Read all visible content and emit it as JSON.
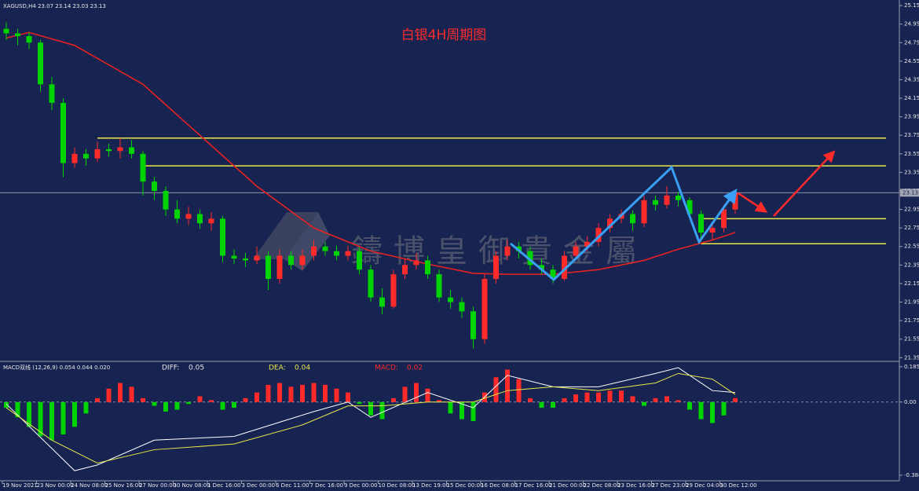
{
  "chart_data": {
    "type": "candlestick",
    "symbol_header": "XAGUSD,H4  23.07 23.14 23.03 23.13",
    "title": "白银4H周期图",
    "watermark": "鑄博皇御貴金屬",
    "last_price": 23.13,
    "up_color": "#ff2a2a",
    "down_color": "#00d400",
    "ylim": [
      21.31,
      25.21
    ],
    "yticks": [
      25.15,
      24.95,
      24.75,
      24.55,
      24.35,
      24.15,
      23.95,
      23.75,
      23.55,
      23.35,
      23.15,
      22.95,
      22.75,
      22.55,
      22.35,
      22.15,
      21.95,
      21.75,
      21.55,
      21.35
    ],
    "x_labels": [
      "19 Nov 2021",
      "23 Nov 00:00",
      "24 Nov 08:00",
      "25 Nov 16:00",
      "27 Nov 00:00",
      "30 Nov 08:00",
      "1 Dec 16:00",
      "3 Dec 00:00",
      "6 Dec 11:00",
      "7 Dec 16:00",
      "9 Dec 00:00",
      "10 Dec 08:00",
      "13 Dec 19:00",
      "15 Dec 00:00",
      "16 Dec 08:00",
      "17 Dec 16:00",
      "21 Dec 00:00",
      "22 Dec 08:00",
      "23 Dec 16:00",
      "27 Dec 23:00",
      "29 Dec 04:00",
      "30 Dec 12:00"
    ],
    "candles": [
      [
        24.9,
        24.97,
        24.78,
        24.85
      ],
      [
        24.85,
        24.9,
        24.72,
        24.82
      ],
      [
        24.82,
        24.86,
        24.68,
        24.75
      ],
      [
        24.75,
        24.78,
        24.22,
        24.3
      ],
      [
        24.3,
        24.38,
        24.02,
        24.1
      ],
      [
        24.1,
        24.15,
        23.3,
        23.45
      ],
      [
        23.45,
        23.62,
        23.4,
        23.55
      ],
      [
        23.55,
        23.6,
        23.42,
        23.5
      ],
      [
        23.5,
        23.68,
        23.46,
        23.6
      ],
      [
        23.6,
        23.66,
        23.52,
        23.58
      ],
      [
        23.58,
        23.72,
        23.5,
        23.62
      ],
      [
        23.62,
        23.7,
        23.5,
        23.55
      ],
      [
        23.55,
        23.58,
        23.1,
        23.25
      ],
      [
        23.25,
        23.3,
        23.05,
        23.15
      ],
      [
        23.15,
        23.2,
        22.88,
        22.95
      ],
      [
        22.95,
        23.05,
        22.8,
        22.85
      ],
      [
        22.85,
        22.98,
        22.78,
        22.9
      ],
      [
        22.9,
        22.95,
        22.74,
        22.8
      ],
      [
        22.8,
        22.92,
        22.72,
        22.85
      ],
      [
        22.85,
        22.88,
        22.38,
        22.45
      ],
      [
        22.45,
        22.52,
        22.36,
        22.42
      ],
      [
        22.42,
        22.48,
        22.33,
        22.4
      ],
      [
        22.4,
        22.55,
        22.36,
        22.45
      ],
      [
        22.45,
        22.5,
        22.08,
        22.2
      ],
      [
        22.2,
        22.52,
        22.15,
        22.45
      ],
      [
        22.45,
        22.5,
        22.3,
        22.35
      ],
      [
        22.35,
        22.52,
        22.3,
        22.45
      ],
      [
        22.45,
        22.62,
        22.4,
        22.55
      ],
      [
        22.55,
        22.6,
        22.45,
        22.5
      ],
      [
        22.5,
        22.56,
        22.4,
        22.45
      ],
      [
        22.45,
        22.56,
        22.4,
        22.5
      ],
      [
        22.5,
        22.54,
        22.25,
        22.3
      ],
      [
        22.3,
        22.35,
        21.95,
        22.0
      ],
      [
        22.0,
        22.1,
        21.82,
        21.9
      ],
      [
        21.9,
        22.3,
        21.88,
        22.25
      ],
      [
        22.25,
        22.42,
        22.2,
        22.35
      ],
      [
        22.35,
        22.48,
        22.3,
        22.4
      ],
      [
        22.4,
        22.45,
        22.2,
        22.25
      ],
      [
        22.25,
        22.3,
        21.95,
        22.0
      ],
      [
        22.0,
        22.08,
        21.88,
        21.95
      ],
      [
        21.95,
        22.0,
        21.78,
        21.85
      ],
      [
        21.85,
        21.9,
        21.45,
        21.55
      ],
      [
        21.55,
        22.25,
        21.5,
        22.2
      ],
      [
        22.2,
        22.5,
        22.15,
        22.45
      ],
      [
        22.45,
        22.62,
        22.4,
        22.55
      ],
      [
        22.55,
        22.6,
        22.42,
        22.5
      ],
      [
        22.5,
        22.55,
        22.3,
        22.35
      ],
      [
        22.35,
        22.42,
        22.25,
        22.3
      ],
      [
        22.3,
        22.35,
        22.15,
        22.2
      ],
      [
        22.2,
        22.5,
        22.18,
        22.45
      ],
      [
        22.45,
        22.6,
        22.4,
        22.55
      ],
      [
        22.55,
        22.66,
        22.5,
        22.6
      ],
      [
        22.6,
        22.8,
        22.55,
        22.75
      ],
      [
        22.75,
        22.9,
        22.7,
        22.85
      ],
      [
        22.85,
        22.95,
        22.8,
        22.9
      ],
      [
        22.9,
        22.94,
        22.72,
        22.8
      ],
      [
        22.8,
        23.1,
        22.76,
        23.05
      ],
      [
        23.05,
        23.1,
        22.94,
        23.0
      ],
      [
        23.0,
        23.2,
        22.96,
        23.1
      ],
      [
        23.1,
        23.14,
        22.98,
        23.05
      ],
      [
        23.05,
        23.08,
        22.85,
        22.9
      ],
      [
        22.9,
        22.94,
        22.6,
        22.7
      ],
      [
        22.7,
        22.82,
        22.62,
        22.75
      ],
      [
        22.75,
        23.0,
        22.7,
        22.95
      ],
      [
        22.95,
        23.16,
        22.9,
        23.13
      ]
    ],
    "ma": {
      "color": "#e52222",
      "x": [
        0,
        2,
        6,
        12,
        17,
        22,
        27,
        32,
        37,
        41,
        44,
        48,
        52,
        56,
        59,
        62,
        64
      ],
      "values": [
        24.8,
        24.86,
        24.72,
        24.3,
        23.75,
        23.2,
        22.75,
        22.5,
        22.36,
        22.26,
        22.25,
        22.25,
        22.3,
        22.4,
        22.52,
        22.62,
        22.7
      ]
    },
    "levels": {
      "color": "#e8e84a",
      "values": [
        23.72,
        23.42,
        22.85,
        22.58
      ],
      "from": [
        8,
        12,
        61,
        61
      ]
    },
    "macd": {
      "header": "MACD双线 (12,26,9) 0.054 0.044 0.020",
      "diff_label": "DIFF:",
      "diff_value": 0.05,
      "dea_label": "DEA:",
      "dea_value": 0.04,
      "macd_label": "MACD:",
      "macd_value": 0.02,
      "ylim": [
        -0.413,
        0.205
      ],
      "yticks": [
        0.185,
        {
          "value": 0,
          "label": "0.00"
        },
        -0.384
      ],
      "histogram": [
        -0.03,
        -0.08,
        -0.13,
        -0.18,
        -0.2,
        -0.17,
        -0.13,
        -0.06,
        0.02,
        0.07,
        0.1,
        0.08,
        0.02,
        -0.02,
        -0.05,
        -0.04,
        -0.01,
        0.03,
        0.01,
        -0.04,
        -0.03,
        0.02,
        0.05,
        0.09,
        0.1,
        0.08,
        0.09,
        0.1,
        0.09,
        0.07,
        0.05,
        -0.01,
        -0.07,
        -0.09,
        0.02,
        0.08,
        0.1,
        0.07,
        0.01,
        -0.06,
        -0.09,
        -0.1,
        0.05,
        0.13,
        0.17,
        0.12,
        0.02,
        -0.03,
        -0.03,
        0.02,
        0.04,
        0.05,
        0.05,
        0.06,
        0.06,
        0.03,
        -0.02,
        0.02,
        0.03,
        0.01,
        -0.04,
        -0.09,
        -0.11,
        -0.07,
        0.02
      ],
      "diff": {
        "color": "#ffffff",
        "x": [
          0,
          6,
          8,
          13,
          20,
          27,
          30,
          32,
          37,
          41,
          44,
          48,
          52,
          57,
          59,
          62,
          64
        ],
        "values": [
          -0.01,
          -0.36,
          -0.33,
          -0.2,
          -0.18,
          -0.05,
          0.0,
          -0.08,
          0.05,
          -0.03,
          0.14,
          0.08,
          0.08,
          0.15,
          0.18,
          0.06,
          0.05
        ]
      },
      "dea": {
        "color": "#e8e84a",
        "x": [
          0,
          4,
          8,
          13,
          20,
          26,
          30,
          33,
          37,
          41,
          44,
          48,
          52,
          57,
          59,
          62,
          64
        ],
        "values": [
          -0.03,
          -0.2,
          -0.32,
          -0.25,
          -0.22,
          -0.12,
          -0.02,
          -0.02,
          0.0,
          0.0,
          0.06,
          0.08,
          0.06,
          0.1,
          0.15,
          0.12,
          0.04
        ]
      }
    }
  }
}
